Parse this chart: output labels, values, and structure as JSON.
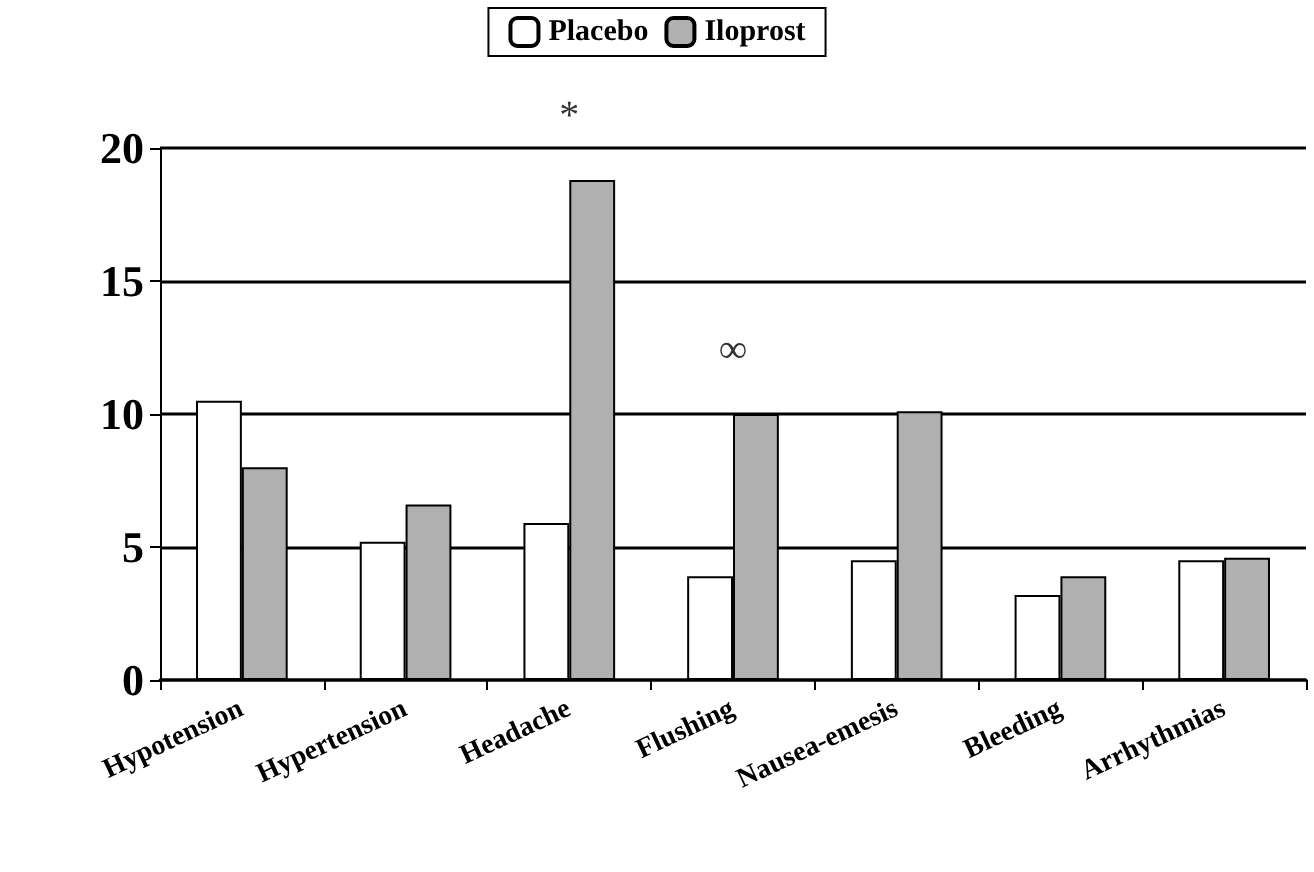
{
  "chart_data": {
    "type": "bar",
    "categories": [
      "Hypotension",
      "Hypertension",
      "Headache",
      "Flushing",
      "Nausea-emesis",
      "Bleeding",
      "Arrhythmias"
    ],
    "series": [
      {
        "name": "Placebo",
        "color": "#ffffff",
        "values": [
          10.5,
          5.2,
          5.9,
          3.9,
          4.5,
          3.2,
          4.5
        ]
      },
      {
        "name": "Iloprost",
        "color": "#b0b0b0",
        "values": [
          8,
          6.6,
          18.8,
          10,
          10.1,
          3.9,
          4.6
        ]
      }
    ],
    "ylim": [
      0,
      20
    ],
    "yticks": [
      0,
      5,
      10,
      15,
      20
    ],
    "grid": "y",
    "legend": "top",
    "annotations": [
      {
        "text": "*",
        "x": "Headache",
        "y": 18.8
      },
      {
        "text": "∞",
        "x": "Flushing",
        "y": 10
      }
    ]
  }
}
